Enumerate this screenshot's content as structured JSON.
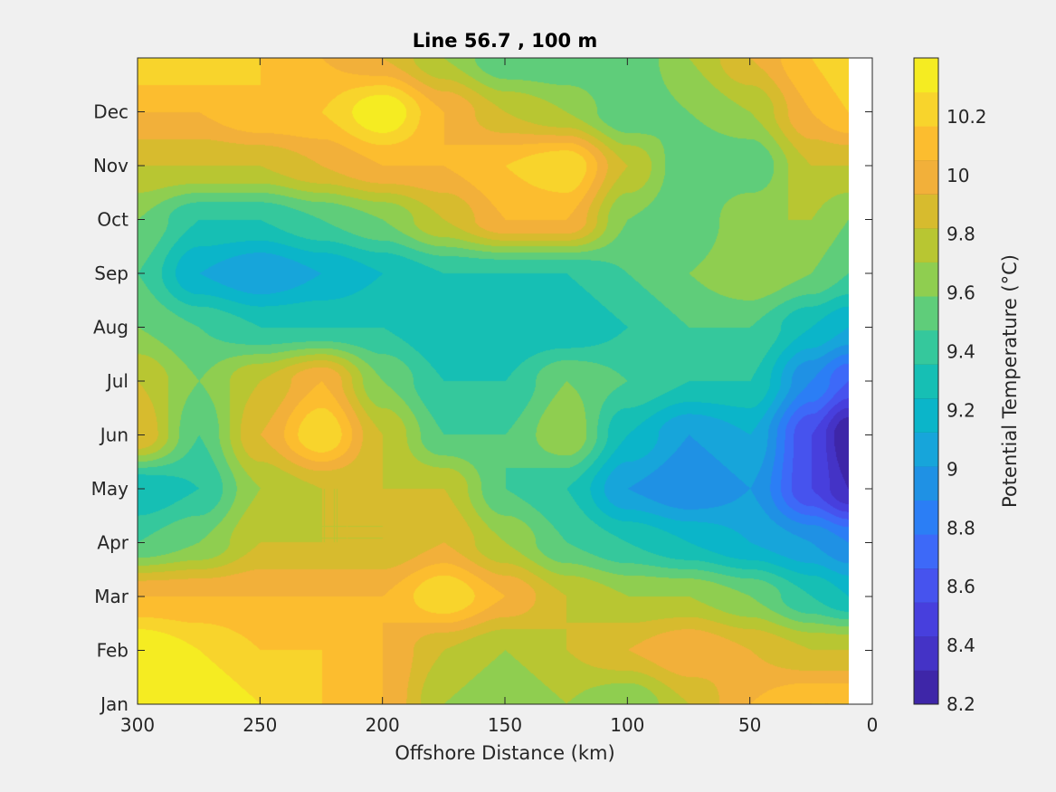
{
  "chart_data": {
    "type": "heatmap",
    "title": "Line 56.7 , 100 m",
    "xlabel": "Offshore Distance (km)",
    "ylabel": "",
    "colorbar_label": "Potential Temperature (°C)",
    "xlim": [
      300,
      0
    ],
    "x_ticks": [
      "300",
      "250",
      "200",
      "150",
      "100",
      "50",
      "0"
    ],
    "y_ticks": [
      "Jan",
      "Feb",
      "Mar",
      "Apr",
      "May",
      "Jun",
      "Jul",
      "Aug",
      "Sep",
      "Oct",
      "Nov",
      "Dec"
    ],
    "colorbar_ticks": [
      "8.2",
      "8.4",
      "8.6",
      "8.8",
      "9",
      "9.2",
      "9.4",
      "9.6",
      "9.8",
      "10",
      "10.2"
    ],
    "clim": [
      8.2,
      10.4
    ],
    "data_x_extent_km": [
      300,
      10
    ],
    "grid": false,
    "x": [
      300,
      275,
      250,
      225,
      200,
      175,
      150,
      125,
      100,
      75,
      50,
      25,
      10
    ],
    "y": [
      "Jan",
      "Feb",
      "Mar",
      "Apr",
      "May",
      "Jun",
      "Jul",
      "Aug",
      "Sep",
      "Oct",
      "Nov",
      "Dec",
      "Jan"
    ],
    "z": [
      [
        10.2,
        10.1,
        10.0,
        9.9,
        9.8,
        9.5,
        9.4,
        9.5,
        9.4,
        9.6,
        9.8,
        9.9,
        9.9
      ],
      [
        10.1,
        10.0,
        9.9,
        9.9,
        9.8,
        9.6,
        9.5,
        9.6,
        9.7,
        9.8,
        9.7,
        9.6,
        9.6
      ],
      [
        9.8,
        9.8,
        9.8,
        9.8,
        9.8,
        10.0,
        9.8,
        9.6,
        9.5,
        9.5,
        9.4,
        9.2,
        9.1
      ],
      [
        9.3,
        9.4,
        9.6,
        9.6,
        9.6,
        9.7,
        9.5,
        9.3,
        9.2,
        9.1,
        9.0,
        8.9,
        8.8
      ],
      [
        9.1,
        9.2,
        9.5,
        9.6,
        9.6,
        9.6,
        9.3,
        9.2,
        8.9,
        8.8,
        8.9,
        8.5,
        8.3
      ],
      [
        9.7,
        9.3,
        9.7,
        10.0,
        9.6,
        9.3,
        9.3,
        9.5,
        9.1,
        8.9,
        9.0,
        8.5,
        8.2
      ],
      [
        9.6,
        9.4,
        9.6,
        9.8,
        9.4,
        9.2,
        9.2,
        9.4,
        9.3,
        9.2,
        9.2,
        8.8,
        8.6
      ],
      [
        9.4,
        9.3,
        9.2,
        9.2,
        9.2,
        9.1,
        9.1,
        9.1,
        9.2,
        9.3,
        9.3,
        9.1,
        9.0
      ],
      [
        9.3,
        9.0,
        8.9,
        9.0,
        9.1,
        9.2,
        9.2,
        9.2,
        9.3,
        9.4,
        9.5,
        9.4,
        9.3
      ],
      [
        9.4,
        9.2,
        9.2,
        9.3,
        9.4,
        9.6,
        9.8,
        9.8,
        9.4,
        9.3,
        9.5,
        9.5,
        9.4
      ],
      [
        9.6,
        9.6,
        9.6,
        9.7,
        9.8,
        9.8,
        9.9,
        10.0,
        9.6,
        9.3,
        9.3,
        9.6,
        9.6
      ],
      [
        9.8,
        9.8,
        9.9,
        9.9,
        10.1,
        9.8,
        9.6,
        9.5,
        9.3,
        9.4,
        9.5,
        9.8,
        9.9
      ],
      [
        10.0,
        10.0,
        9.9,
        9.8,
        9.7,
        9.5,
        9.3,
        9.3,
        9.3,
        9.5,
        9.7,
        9.9,
        10.0
      ]
    ],
    "colormap": [
      "#3e26a8",
      "#4433c6",
      "#473fdd",
      "#4653ee",
      "#3d69f8",
      "#2b7ef5",
      "#1f91e4",
      "#17a5da",
      "#0bb5c9",
      "#16bfb4",
      "#35c89c",
      "#5fcd7a",
      "#8fce50",
      "#b8c632",
      "#d7bb2e",
      "#f2b03a",
      "#fcbd2f",
      "#f8d42c",
      "#f5ec22"
    ]
  }
}
